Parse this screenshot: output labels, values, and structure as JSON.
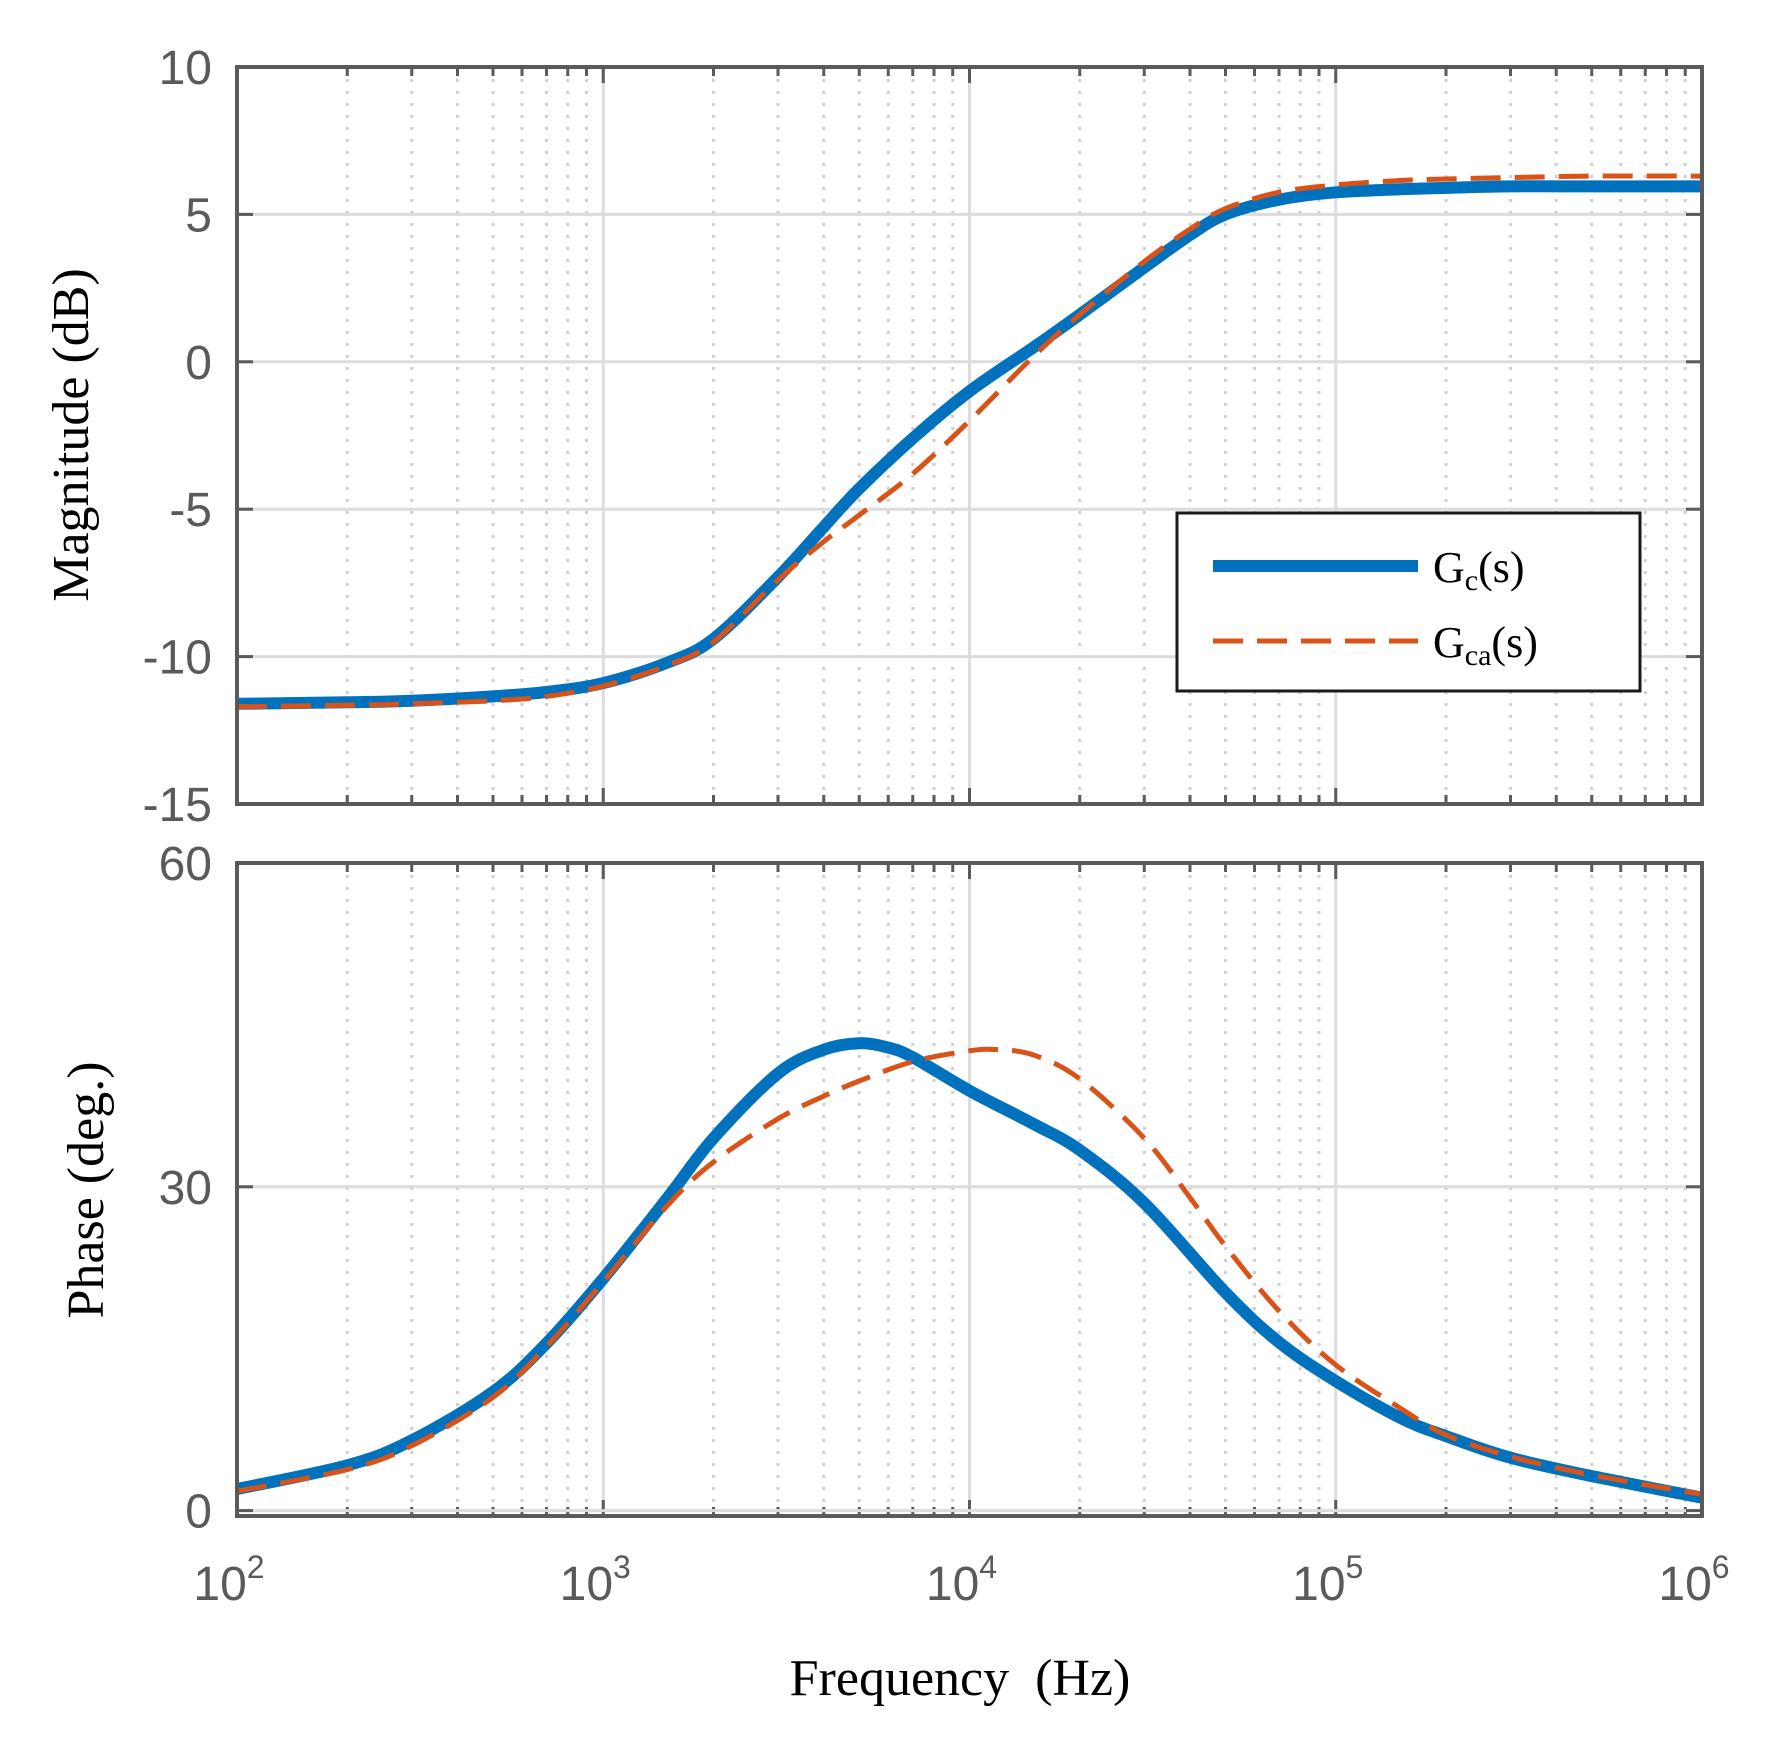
{
  "chart_data": [
    {
      "type": "line",
      "panel": "magnitude",
      "ylabel": "Magnitude (dB)",
      "xscale": "log",
      "xlim": [
        100,
        1000000
      ],
      "ylim": [
        -15,
        10
      ],
      "yticks": [
        "10",
        "5",
        "0",
        "-5",
        "-10",
        "-15"
      ],
      "grid": true,
      "legend_position": "right",
      "series": [
        {
          "name": "Gc(s)",
          "color": "#0072BD",
          "style": "solid",
          "x": [
            100,
            200,
            300,
            500,
            700,
            1000,
            1500,
            2000,
            3000,
            4000,
            5000,
            7000,
            10000,
            15000,
            20000,
            30000,
            40000,
            50000,
            70000,
            100000,
            150000,
            200000,
            300000,
            500000,
            1000000
          ],
          "y": [
            -11.6,
            -11.55,
            -11.5,
            -11.35,
            -11.2,
            -10.9,
            -10.2,
            -9.4,
            -7.3,
            -5.6,
            -4.3,
            -2.6,
            -1.0,
            0.5,
            1.6,
            3.2,
            4.3,
            5.0,
            5.5,
            5.75,
            5.85,
            5.9,
            5.95,
            5.95,
            5.95
          ]
        },
        {
          "name": "Gca(s)",
          "color": "#D95319",
          "style": "dashed",
          "x": [
            100,
            200,
            300,
            500,
            700,
            1000,
            1500,
            2000,
            3000,
            4000,
            5000,
            7000,
            10000,
            15000,
            20000,
            30000,
            40000,
            50000,
            70000,
            100000,
            150000,
            200000,
            300000,
            500000,
            1000000
          ],
          "y": [
            -11.7,
            -11.65,
            -11.6,
            -11.5,
            -11.35,
            -11.0,
            -10.3,
            -9.5,
            -7.4,
            -6.1,
            -5.2,
            -3.8,
            -2.0,
            0.2,
            1.6,
            3.4,
            4.5,
            5.2,
            5.75,
            6.0,
            6.15,
            6.2,
            6.25,
            6.3,
            6.3
          ]
        }
      ]
    },
    {
      "type": "line",
      "panel": "phase",
      "xlabel": "Frequency  (Hz)",
      "ylabel": "Phase (deg.)",
      "xscale": "log",
      "xlim": [
        100,
        1000000
      ],
      "ylim": [
        -0.5,
        60
      ],
      "yticks": [
        "60",
        "30",
        "0"
      ],
      "xticks": [
        {
          "base": "10",
          "exp": "2"
        },
        {
          "base": "10",
          "exp": "3"
        },
        {
          "base": "10",
          "exp": "4"
        },
        {
          "base": "10",
          "exp": "5"
        },
        {
          "base": "10",
          "exp": "6"
        }
      ],
      "grid": true,
      "series": [
        {
          "name": "Gc(s)",
          "color": "#0072BD",
          "style": "solid",
          "x": [
            100,
            200,
            300,
            500,
            700,
            1000,
            1500,
            2000,
            3000,
            4000,
            5000,
            6000,
            7000,
            10000,
            15000,
            20000,
            30000,
            50000,
            70000,
            100000,
            150000,
            200000,
            300000,
            500000,
            1000000
          ],
          "y": [
            2.0,
            4.2,
            6.5,
            11.0,
            15.5,
            21.5,
            29.0,
            34.5,
            40.5,
            42.7,
            43.3,
            42.9,
            42.0,
            38.9,
            35.8,
            33.4,
            28.5,
            20.2,
            15.6,
            12.0,
            8.6,
            6.9,
            4.9,
            3.2,
            1.2
          ]
        },
        {
          "name": "Gca(s)",
          "color": "#D95319",
          "style": "dashed",
          "x": [
            100,
            200,
            300,
            500,
            700,
            1000,
            1500,
            2000,
            3000,
            4000,
            5000,
            7000,
            10000,
            12000,
            15000,
            20000,
            30000,
            40000,
            50000,
            70000,
            100000,
            150000,
            200000,
            300000,
            500000,
            1000000
          ],
          "y": [
            1.8,
            3.8,
            6.0,
            10.5,
            15.2,
            21.2,
            28.3,
            32.3,
            36.3,
            38.4,
            39.8,
            41.6,
            42.6,
            42.7,
            42.2,
            40.0,
            34.5,
            29.0,
            24.5,
            18.5,
            13.5,
            9.5,
            7.0,
            5.0,
            3.3,
            1.5
          ]
        }
      ]
    }
  ],
  "legend": {
    "items": [
      {
        "base": "G",
        "sub": "c",
        "suffix": "(s)"
      },
      {
        "base": "G",
        "sub": "ca",
        "suffix": "(s)"
      }
    ]
  }
}
